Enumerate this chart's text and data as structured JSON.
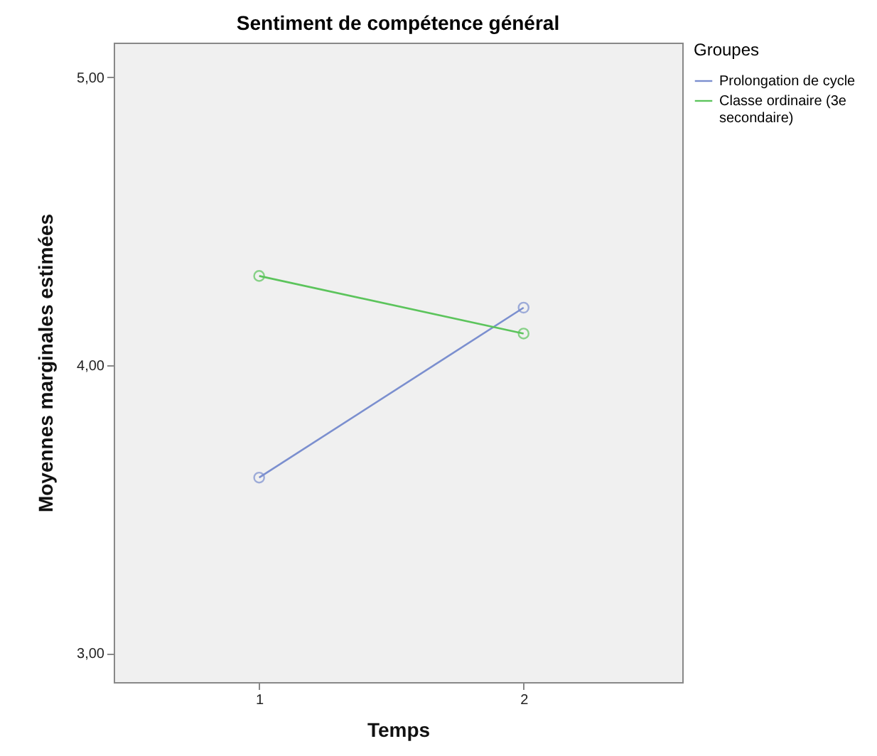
{
  "chart_data": {
    "type": "line",
    "title": "Sentiment de compétence général",
    "xlabel": "Temps",
    "ylabel": "Moyennes marginales estimées",
    "legend_title": "Groupes",
    "legend": "top right",
    "marker": "circle",
    "x": [
      1,
      2
    ],
    "xlim": [
      0.45,
      2.6
    ],
    "xticks": [
      1,
      2
    ],
    "ylim": [
      2.9,
      5.12
    ],
    "yticks": [
      {
        "value": 3,
        "label": "3,00"
      },
      {
        "value": 4,
        "label": "4,00"
      },
      {
        "value": 5,
        "label": "5,00"
      }
    ],
    "series": [
      {
        "name": "Prolongation de cycle",
        "color": "#7b8fcf",
        "values": [
          3.61,
          4.2
        ]
      },
      {
        "name": "Classe ordinaire (3e secondaire)",
        "color": "#5cc45c",
        "values": [
          4.31,
          4.11
        ]
      }
    ]
  }
}
